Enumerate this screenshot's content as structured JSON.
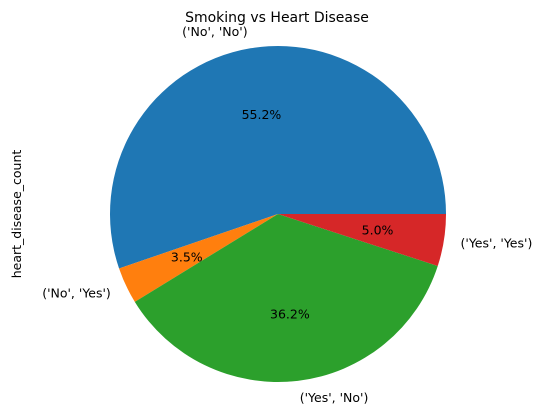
{
  "chart_data": {
    "type": "pie",
    "title": "Smoking vs Heart Disease",
    "ylabel": "heart_disease_count",
    "slices": [
      {
        "label": "('No', 'No')",
        "value": 55.2,
        "pct_label": "55.2%",
        "color": "#1f77b4"
      },
      {
        "label": "('No', 'Yes')",
        "value": 3.5,
        "pct_label": "3.5%",
        "color": "#ff7f0e"
      },
      {
        "label": "('Yes', 'No')",
        "value": 36.2,
        "pct_label": "36.2%",
        "color": "#2ca02c"
      },
      {
        "label": "('Yes', 'Yes')",
        "value": 5.0,
        "pct_label": "5.0%",
        "color": "#d62728"
      }
    ],
    "start_angle_deg": 0,
    "direction": "counterclockwise",
    "legend": "none"
  }
}
